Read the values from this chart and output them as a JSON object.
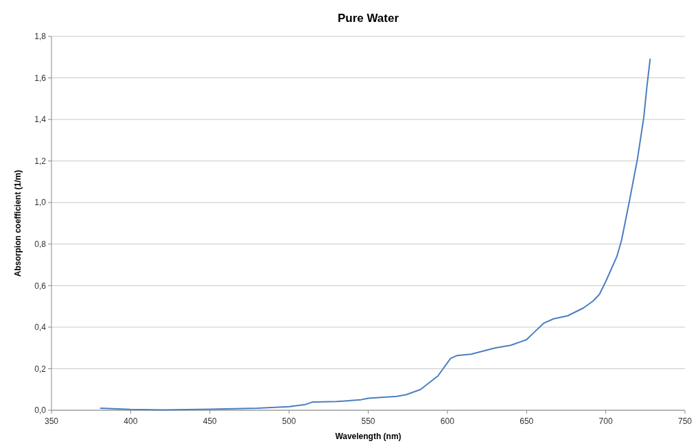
{
  "chart_data": {
    "type": "line",
    "title": "Pure Water",
    "xlabel": "Wavelength (nm)",
    "ylabel": "Absorpion coefficient (1/m)",
    "series": [
      {
        "color": "#4a7ebf",
        "x": [
          381,
          400,
          420,
          450,
          480,
          500,
          510,
          515,
          530,
          545,
          550,
          568,
          574,
          583,
          594,
          602,
          606,
          615,
          630,
          640,
          650,
          655,
          661,
          667,
          676,
          686,
          692,
          696,
          700,
          707,
          710,
          715,
          720,
          724,
          726,
          728
        ],
        "values": [
          0.01,
          0.004,
          0.002,
          0.005,
          0.01,
          0.017,
          0.027,
          0.04,
          0.042,
          0.05,
          0.058,
          0.067,
          0.075,
          0.1,
          0.165,
          0.25,
          0.263,
          0.27,
          0.3,
          0.313,
          0.34,
          0.377,
          0.42,
          0.44,
          0.455,
          0.493,
          0.526,
          0.558,
          0.62,
          0.74,
          0.82,
          1.01,
          1.21,
          1.41,
          1.56,
          1.69
        ]
      }
    ],
    "xlim": [
      350,
      750
    ],
    "xticks": [
      350,
      400,
      450,
      500,
      550,
      600,
      650,
      700,
      750
    ],
    "ylim": [
      0,
      1.8
    ],
    "yticks": [
      {
        "value": 0,
        "label": "0,0"
      },
      {
        "value": 0.2,
        "label": "0,2"
      },
      {
        "value": 0.4,
        "label": "0,4"
      },
      {
        "value": 0.6,
        "label": "0,6"
      },
      {
        "value": 0.8,
        "label": "0,8"
      },
      {
        "value": 1,
        "label": "1,0"
      },
      {
        "value": 1.2,
        "label": "1,2"
      },
      {
        "value": 1.4,
        "label": "1,4"
      },
      {
        "value": 1.6,
        "label": "1,6"
      },
      {
        "value": 1.8,
        "label": "1,8"
      }
    ],
    "grid": "y",
    "marker": "none",
    "line_style": "solid"
  }
}
